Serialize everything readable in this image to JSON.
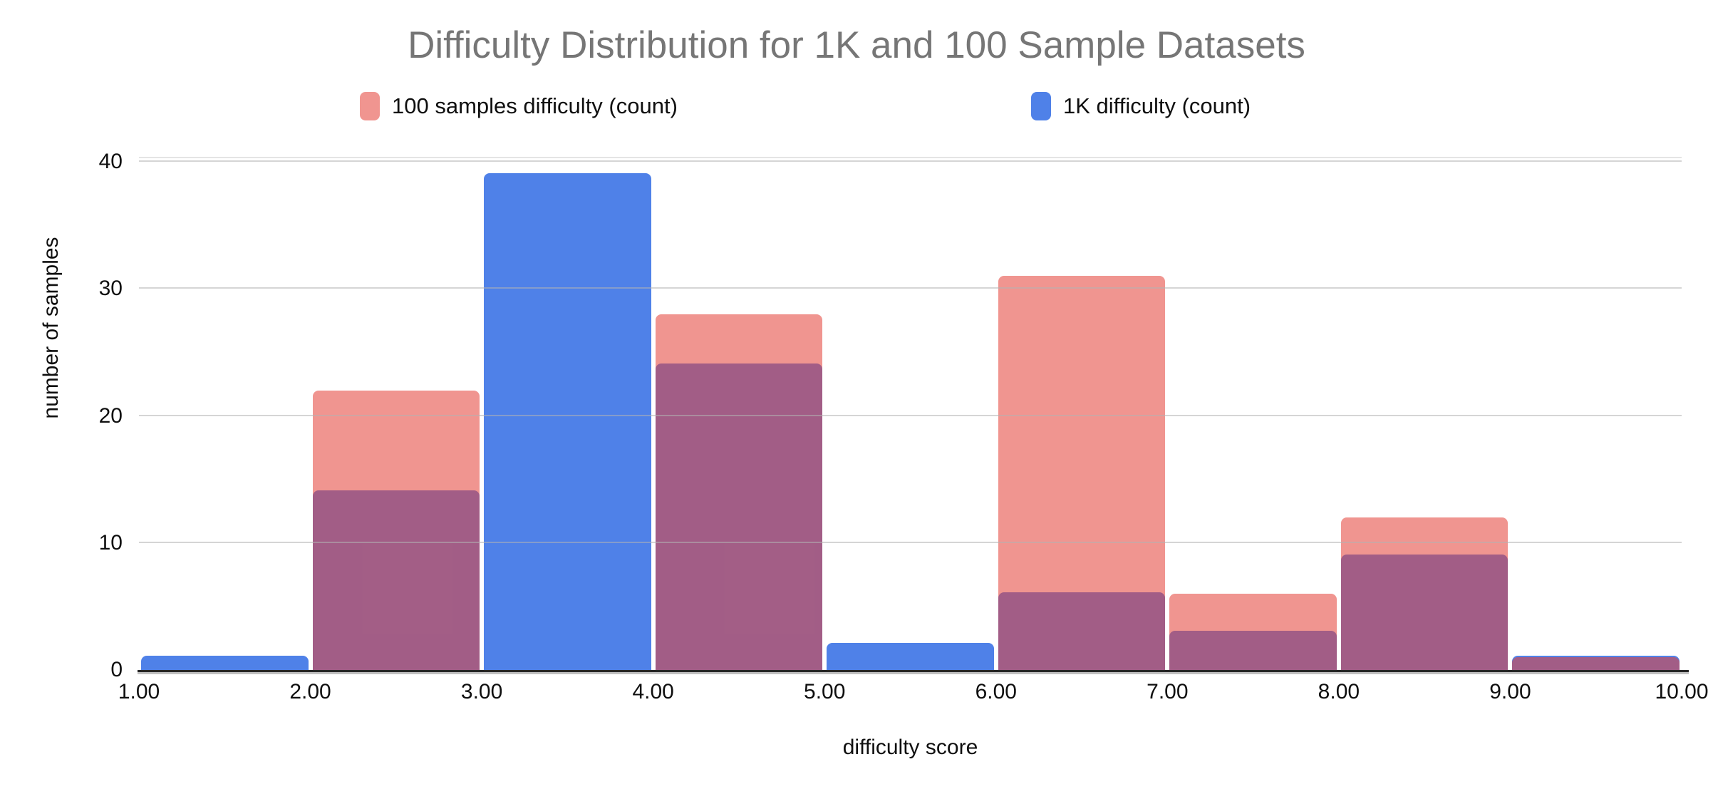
{
  "colors": {
    "title_gray": "#767676",
    "axis_text": "#0f0f0f",
    "gridline_gray": "#b2b2b2",
    "blue_series": "#4F81E8",
    "red_series_rgba": "rgba(229,66,57,0.56)",
    "red_series_composite": "#F0958F",
    "axis_line": "#262626"
  },
  "legend": {
    "items": [
      {
        "label": "100 samples difficulty (count)",
        "color": "rgba(229,66,57,0.56)"
      },
      {
        "label": "1K difficulty (count)",
        "color": "#4F81E8"
      }
    ]
  },
  "chart_data": {
    "type": "bar",
    "subtype": "overlapping-histogram",
    "title": "Difficulty Distribution for 1K and 100 Sample Datasets",
    "xlabel": "difficulty score",
    "ylabel": "number of samples",
    "xlim": [
      1,
      10
    ],
    "ylim": [
      0,
      40
    ],
    "grid": "horizontal",
    "legend_position": "top",
    "bin_edges": [
      1,
      2,
      3,
      4,
      5,
      6,
      7,
      8,
      9,
      10
    ],
    "x_tick_labels": [
      "1.00",
      "2.00",
      "3.00",
      "4.00",
      "5.00",
      "6.00",
      "7.00",
      "8.00",
      "9.00",
      "10.00"
    ],
    "y_tick_labels": [
      "0",
      "10",
      "20",
      "30",
      "40"
    ],
    "series": [
      {
        "name": "1K difficulty (count)",
        "color": "#4F81E8",
        "z_index": 1,
        "values": [
          1,
          14,
          39,
          24,
          2,
          6,
          3,
          9,
          1
        ]
      },
      {
        "name": "100 samples difficulty (count)",
        "color": "rgba(229,66,57,0.56)",
        "z_index": 2,
        "values": [
          0,
          22,
          0,
          28,
          0,
          31,
          6,
          12,
          1
        ]
      }
    ]
  }
}
